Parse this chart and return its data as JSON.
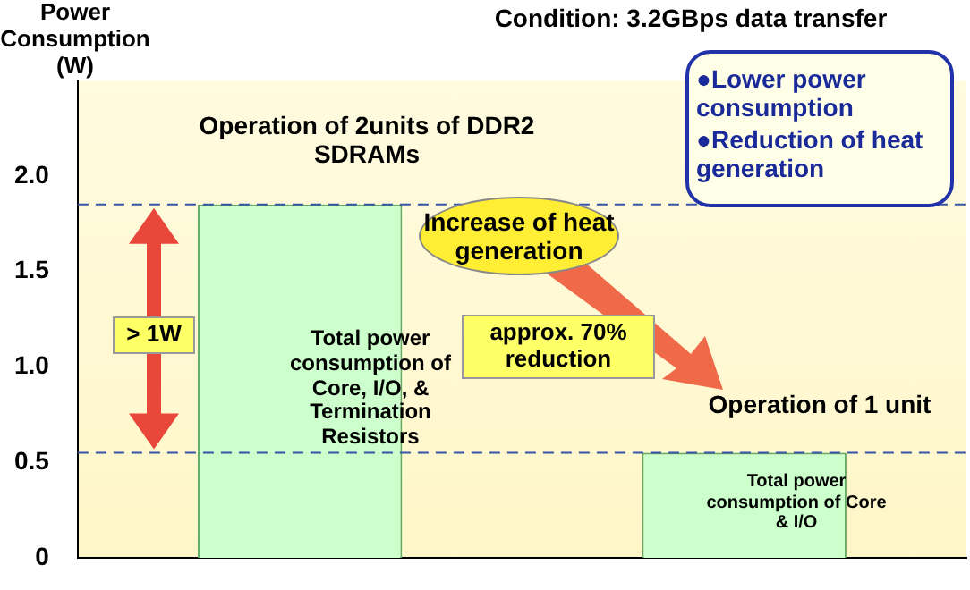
{
  "chart_data": {
    "type": "bar",
    "ylabel": "Power Consumption (W)",
    "categories": [
      null,
      null
    ],
    "values": [
      1.85,
      0.55
    ],
    "color": "#ccffcc",
    "ylim": [
      0,
      2.5
    ],
    "yticks": [
      {
        "value": 0,
        "label": "0"
      },
      {
        "value": 0.5,
        "label": "0.5"
      },
      {
        "value": 1,
        "label": "1.0"
      },
      {
        "value": 1.5,
        "label": "1.5"
      },
      {
        "value": 2,
        "label": "2.0"
      }
    ],
    "ref_lines": [
      {
        "axis": "y",
        "value": 1.85,
        "color": "#3355aa",
        "line_style": "dashed"
      },
      {
        "axis": "y",
        "value": 0.55,
        "color": "#3355aa",
        "line_style": "dashed"
      }
    ],
    "annotations": [
      "Condition: 3.2GBps data transfer",
      "Operation of 2units of DDR2 SDRAMs",
      "Total power consumption of Core, I/O, & Termination Resistors",
      "Operation of 1 unit",
      "Total power consumption of Core & I/O",
      "> 1W",
      "Increase of heat generation",
      "approx. 70% reduction",
      "●Lower power consumption",
      "●Reduction of heat generation"
    ]
  }
}
